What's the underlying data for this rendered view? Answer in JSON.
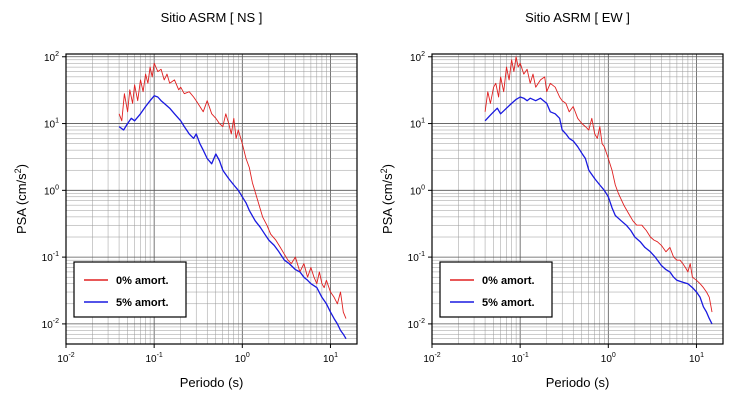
{
  "chart_data": [
    {
      "type": "line",
      "title": "Sitio ASRM [ NS ]",
      "xlabel": "Periodo (s)",
      "ylabel": "PSA (cm/s",
      "ylabel_sup": "2",
      "ylabel_close": ")",
      "xscale": "log",
      "yscale": "log",
      "xlim": [
        0.01,
        20
      ],
      "ylim": [
        0.005,
        110
      ],
      "grid": true,
      "legend_position": "bottom-left",
      "xticks": [
        {
          "value": 0.01,
          "base": "10",
          "exp": "-2"
        },
        {
          "value": 0.1,
          "base": "10",
          "exp": "-1"
        },
        {
          "value": 1,
          "base": "10",
          "exp": "0"
        },
        {
          "value": 10,
          "base": "10",
          "exp": "1"
        }
      ],
      "yticks": [
        {
          "value": 0.01,
          "base": "10",
          "exp": "-2"
        },
        {
          "value": 0.1,
          "base": "10",
          "exp": "-1"
        },
        {
          "value": 1,
          "base": "10",
          "exp": "0"
        },
        {
          "value": 10,
          "base": "10",
          "exp": "1"
        },
        {
          "value": 100,
          "base": "10",
          "exp": "2"
        }
      ],
      "series": [
        {
          "name": "0% amort.",
          "color": "#e02020",
          "x": [
            0.04,
            0.043,
            0.046,
            0.05,
            0.053,
            0.057,
            0.06,
            0.065,
            0.07,
            0.075,
            0.08,
            0.085,
            0.09,
            0.095,
            0.1,
            0.11,
            0.12,
            0.13,
            0.14,
            0.15,
            0.17,
            0.19,
            0.2,
            0.22,
            0.25,
            0.28,
            0.3,
            0.33,
            0.36,
            0.4,
            0.45,
            0.5,
            0.55,
            0.6,
            0.65,
            0.7,
            0.75,
            0.8,
            0.85,
            0.9,
            1.0,
            1.1,
            1.2,
            1.3,
            1.5,
            1.7,
            1.9,
            2.1,
            2.4,
            2.7,
            3.0,
            3.3,
            3.6,
            4.0,
            4.5,
            5.0,
            5.5,
            6.0,
            6.5,
            7.0,
            7.5,
            8.0,
            8.5,
            9.0,
            10.0,
            11.0,
            12.0,
            13.0,
            14.0,
            15.0
          ],
          "y": [
            14,
            11,
            28,
            15,
            32,
            20,
            38,
            22,
            45,
            30,
            55,
            40,
            70,
            50,
            80,
            60,
            65,
            45,
            55,
            40,
            45,
            32,
            35,
            28,
            30,
            25,
            22,
            18,
            15,
            22,
            14,
            12,
            10,
            9,
            14,
            10,
            7,
            12,
            6,
            8,
            5,
            3,
            2.2,
            1.3,
            0.7,
            0.4,
            0.3,
            0.22,
            0.18,
            0.14,
            0.11,
            0.09,
            0.08,
            0.1,
            0.06,
            0.08,
            0.05,
            0.07,
            0.05,
            0.04,
            0.06,
            0.04,
            0.035,
            0.045,
            0.03,
            0.025,
            0.02,
            0.03,
            0.015,
            0.012
          ]
        },
        {
          "name": "5% amort.",
          "color": "#1a1ae0",
          "x": [
            0.04,
            0.045,
            0.05,
            0.055,
            0.06,
            0.07,
            0.08,
            0.09,
            0.1,
            0.11,
            0.12,
            0.13,
            0.15,
            0.17,
            0.2,
            0.22,
            0.25,
            0.28,
            0.3,
            0.33,
            0.36,
            0.4,
            0.45,
            0.5,
            0.55,
            0.6,
            0.7,
            0.8,
            0.9,
            1.0,
            1.1,
            1.2,
            1.4,
            1.6,
            1.8,
            2.0,
            2.3,
            2.6,
            3.0,
            3.4,
            4.0,
            4.5,
            5.0,
            5.5,
            6.0,
            7.0,
            8.0,
            9.0,
            10.0,
            11.0,
            12.0,
            13.0,
            14.0,
            15.0
          ],
          "y": [
            9,
            8,
            10,
            12,
            11,
            14,
            18,
            22,
            26,
            25,
            22,
            20,
            17,
            14,
            11,
            9,
            7,
            6,
            7,
            5,
            4,
            3,
            2.5,
            3.5,
            2.8,
            2,
            1.5,
            1.2,
            1.0,
            0.8,
            0.65,
            0.5,
            0.35,
            0.28,
            0.22,
            0.18,
            0.15,
            0.12,
            0.09,
            0.08,
            0.065,
            0.06,
            0.05,
            0.045,
            0.04,
            0.035,
            0.025,
            0.02,
            0.015,
            0.012,
            0.01,
            0.008,
            0.007,
            0.006
          ]
        }
      ]
    },
    {
      "type": "line",
      "title": "Sitio ASRM [ EW ]",
      "xlabel": "Periodo (s)",
      "ylabel": "PSA (cm/s",
      "ylabel_sup": "2",
      "ylabel_close": ")",
      "xscale": "log",
      "yscale": "log",
      "xlim": [
        0.01,
        20
      ],
      "ylim": [
        0.005,
        110
      ],
      "grid": true,
      "legend_position": "bottom-left",
      "xticks": [
        {
          "value": 0.01,
          "base": "10",
          "exp": "-2"
        },
        {
          "value": 0.1,
          "base": "10",
          "exp": "-1"
        },
        {
          "value": 1,
          "base": "10",
          "exp": "0"
        },
        {
          "value": 10,
          "base": "10",
          "exp": "1"
        }
      ],
      "yticks": [
        {
          "value": 0.01,
          "base": "10",
          "exp": "-2"
        },
        {
          "value": 0.1,
          "base": "10",
          "exp": "-1"
        },
        {
          "value": 1,
          "base": "10",
          "exp": "0"
        },
        {
          "value": 10,
          "base": "10",
          "exp": "1"
        },
        {
          "value": 100,
          "base": "10",
          "exp": "2"
        }
      ],
      "series": [
        {
          "name": "0% amort.",
          "color": "#e02020",
          "x": [
            0.04,
            0.043,
            0.046,
            0.05,
            0.053,
            0.057,
            0.06,
            0.065,
            0.07,
            0.075,
            0.08,
            0.085,
            0.09,
            0.095,
            0.1,
            0.11,
            0.12,
            0.13,
            0.14,
            0.15,
            0.17,
            0.19,
            0.2,
            0.22,
            0.25,
            0.28,
            0.3,
            0.33,
            0.36,
            0.4,
            0.45,
            0.5,
            0.55,
            0.6,
            0.65,
            0.7,
            0.75,
            0.8,
            0.85,
            0.9,
            1.0,
            1.1,
            1.2,
            1.3,
            1.5,
            1.7,
            1.9,
            2.1,
            2.4,
            2.7,
            3.0,
            3.3,
            3.6,
            4.0,
            4.5,
            5.0,
            5.5,
            6.0,
            6.5,
            7.0,
            7.5,
            8.0,
            8.5,
            9.0,
            10.0,
            11.0,
            12.0,
            13.0,
            14.0,
            15.0
          ],
          "y": [
            15,
            30,
            20,
            35,
            40,
            25,
            50,
            30,
            70,
            45,
            90,
            60,
            100,
            70,
            80,
            55,
            65,
            40,
            55,
            35,
            45,
            50,
            30,
            40,
            35,
            25,
            22,
            20,
            15,
            18,
            12,
            10,
            9,
            8,
            12,
            7,
            6,
            9,
            5,
            4.5,
            3,
            2,
            1.2,
            0.9,
            0.6,
            0.45,
            0.35,
            0.3,
            0.3,
            0.25,
            0.2,
            0.18,
            0.17,
            0.15,
            0.12,
            0.14,
            0.1,
            0.09,
            0.09,
            0.08,
            0.07,
            0.06,
            0.08,
            0.05,
            0.045,
            0.04,
            0.035,
            0.03,
            0.025,
            0.015
          ]
        },
        {
          "name": "5% amort.",
          "color": "#1a1ae0",
          "x": [
            0.04,
            0.045,
            0.05,
            0.055,
            0.06,
            0.07,
            0.08,
            0.09,
            0.1,
            0.11,
            0.12,
            0.13,
            0.15,
            0.17,
            0.2,
            0.22,
            0.25,
            0.28,
            0.3,
            0.33,
            0.36,
            0.4,
            0.45,
            0.5,
            0.55,
            0.6,
            0.7,
            0.8,
            0.9,
            1.0,
            1.1,
            1.2,
            1.4,
            1.6,
            1.8,
            2.0,
            2.3,
            2.6,
            3.0,
            3.4,
            4.0,
            4.5,
            5.0,
            5.5,
            6.0,
            7.0,
            8.0,
            9.0,
            10.0,
            11.0,
            12.0,
            13.0,
            14.0,
            15.0
          ],
          "y": [
            11,
            13,
            15,
            17,
            14,
            17,
            20,
            23,
            25,
            24,
            22,
            24,
            22,
            24,
            20,
            15,
            14,
            12,
            8,
            7,
            6,
            5.5,
            4.5,
            3.6,
            3,
            2,
            1.5,
            1.2,
            1.0,
            0.8,
            0.55,
            0.42,
            0.35,
            0.3,
            0.25,
            0.2,
            0.17,
            0.14,
            0.12,
            0.1,
            0.075,
            0.065,
            0.06,
            0.05,
            0.045,
            0.042,
            0.04,
            0.035,
            0.03,
            0.025,
            0.018,
            0.015,
            0.012,
            0.01
          ]
        }
      ]
    }
  ]
}
